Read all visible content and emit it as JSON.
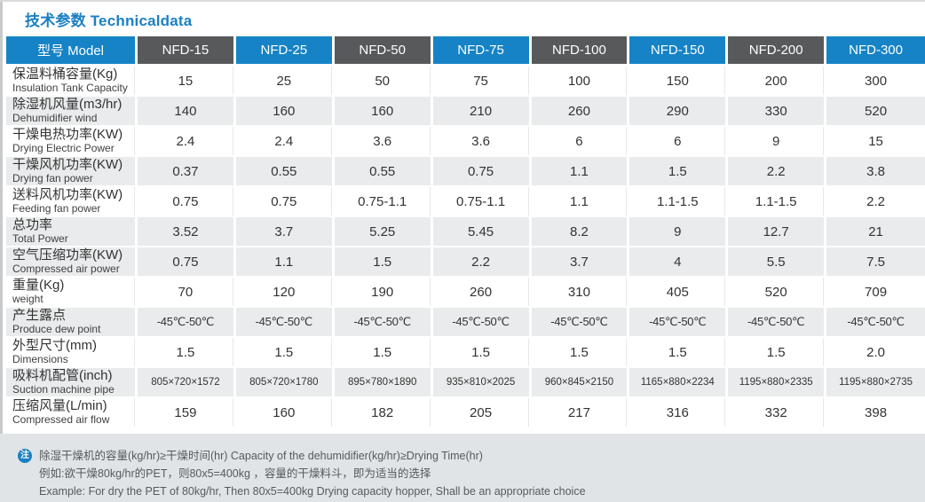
{
  "page": {
    "title": "技术参数 Technicaldata"
  },
  "colors": {
    "accent_blue": "#1583c6",
    "header_dark_gray": "#58595b",
    "row_shade_gray": "#e9ebec",
    "note_background": "#e1e4e6",
    "title_blue": "#1b80c3"
  },
  "table": {
    "model_header": "型号 Model",
    "models": [
      "NFD-15",
      "NFD-25",
      "NFD-50",
      "NFD-75",
      "NFD-100",
      "NFD-150",
      "NFD-200",
      "NFD-300"
    ],
    "rows": [
      {
        "label_cn": "保温料桶容量(Kg)",
        "label_en": "Insulation Tank Capacity",
        "values": [
          "15",
          "25",
          "50",
          "75",
          "100",
          "150",
          "200",
          "300"
        ],
        "shaded": false
      },
      {
        "label_cn": "除湿机风量(m3/hr)",
        "label_en": "Dehumidifier wind",
        "values": [
          "140",
          "160",
          "160",
          "210",
          "260",
          "290",
          "330",
          "520"
        ],
        "shaded": true
      },
      {
        "label_cn": "干燥电热功率(KW)",
        "label_en": "Drying Electric Power",
        "values": [
          "2.4",
          "2.4",
          "3.6",
          "3.6",
          "6",
          "6",
          "9",
          "15"
        ],
        "shaded": false
      },
      {
        "label_cn": "干燥风机功率(KW)",
        "label_en": "Drying fan power",
        "values": [
          "0.37",
          "0.55",
          "0.55",
          "0.75",
          "1.1",
          "1.5",
          "2.2",
          "3.8"
        ],
        "shaded": true
      },
      {
        "label_cn": "送料风机功率(KW)",
        "label_en": "Feeding fan power",
        "values": [
          "0.75",
          "0.75",
          "0.75-1.1",
          "0.75-1.1",
          "1.1",
          "1.1-1.5",
          "1.1-1.5",
          "2.2"
        ],
        "shaded": false
      },
      {
        "label_cn": "总功率",
        "label_en": "Total Power",
        "values": [
          "3.52",
          "3.7",
          "5.25",
          "5.45",
          "8.2",
          "9",
          "12.7",
          "21"
        ],
        "shaded": true
      },
      {
        "label_cn": "空气压缩功率(KW)",
        "label_en": "Compressed air power",
        "values": [
          "0.75",
          "1.1",
          "1.5",
          "2.2",
          "3.7",
          "4",
          "5.5",
          "7.5"
        ],
        "shaded": true
      },
      {
        "label_cn": "重量(Kg)",
        "label_en": "weight",
        "values": [
          "70",
          "120",
          "190",
          "260",
          "310",
          "405",
          "520",
          "709"
        ],
        "shaded": false
      },
      {
        "label_cn": "产生露点",
        "label_en": "Produce dew point",
        "values": [
          "-45℃-50℃",
          "-45℃-50℃",
          "-45℃-50℃",
          "-45℃-50℃",
          "-45℃-50℃",
          "-45℃-50℃",
          "-45℃-50℃",
          "-45℃-50℃"
        ],
        "shaded": true,
        "compact": true
      },
      {
        "label_cn": "外型尺寸(mm)",
        "label_en": "Dimensions",
        "values": [
          "1.5",
          "1.5",
          "1.5",
          "1.5",
          "1.5",
          "1.5",
          "1.5",
          "2.0"
        ],
        "shaded": false
      },
      {
        "label_cn": "吸料机配管(inch)",
        "label_en": "Suction machine pipe",
        "values": [
          "805×720×1572",
          "805×720×1780",
          "895×780×1890",
          "935×810×2025",
          "960×845×2150",
          "1165×880×2234",
          "1195×880×2335",
          "1195×880×2735"
        ],
        "shaded": true,
        "small": true
      },
      {
        "label_cn": "压缩风量(L/min)",
        "label_en": "Compressed air flow",
        "values": [
          "159",
          "160",
          "182",
          "205",
          "217",
          "316",
          "332",
          "398"
        ],
        "shaded": false
      }
    ]
  },
  "note": {
    "icon_glyph": "注",
    "line1": "除湿干燥机的容量(kg/hr)≥干燥时间(hr)   Capacity of the dehumidifier(kg/hr)≥Drying Time(hr)",
    "line2": "例如:欲干燥80kg/hr的PET，则80x5=400kg ，容量的干燥料斗，即为适当的选择",
    "line3": "Example: For dry the PET of 80kg/hr, Then 80x5=400kg Drying capacity hopper, Shall be an appropriate choice"
  }
}
